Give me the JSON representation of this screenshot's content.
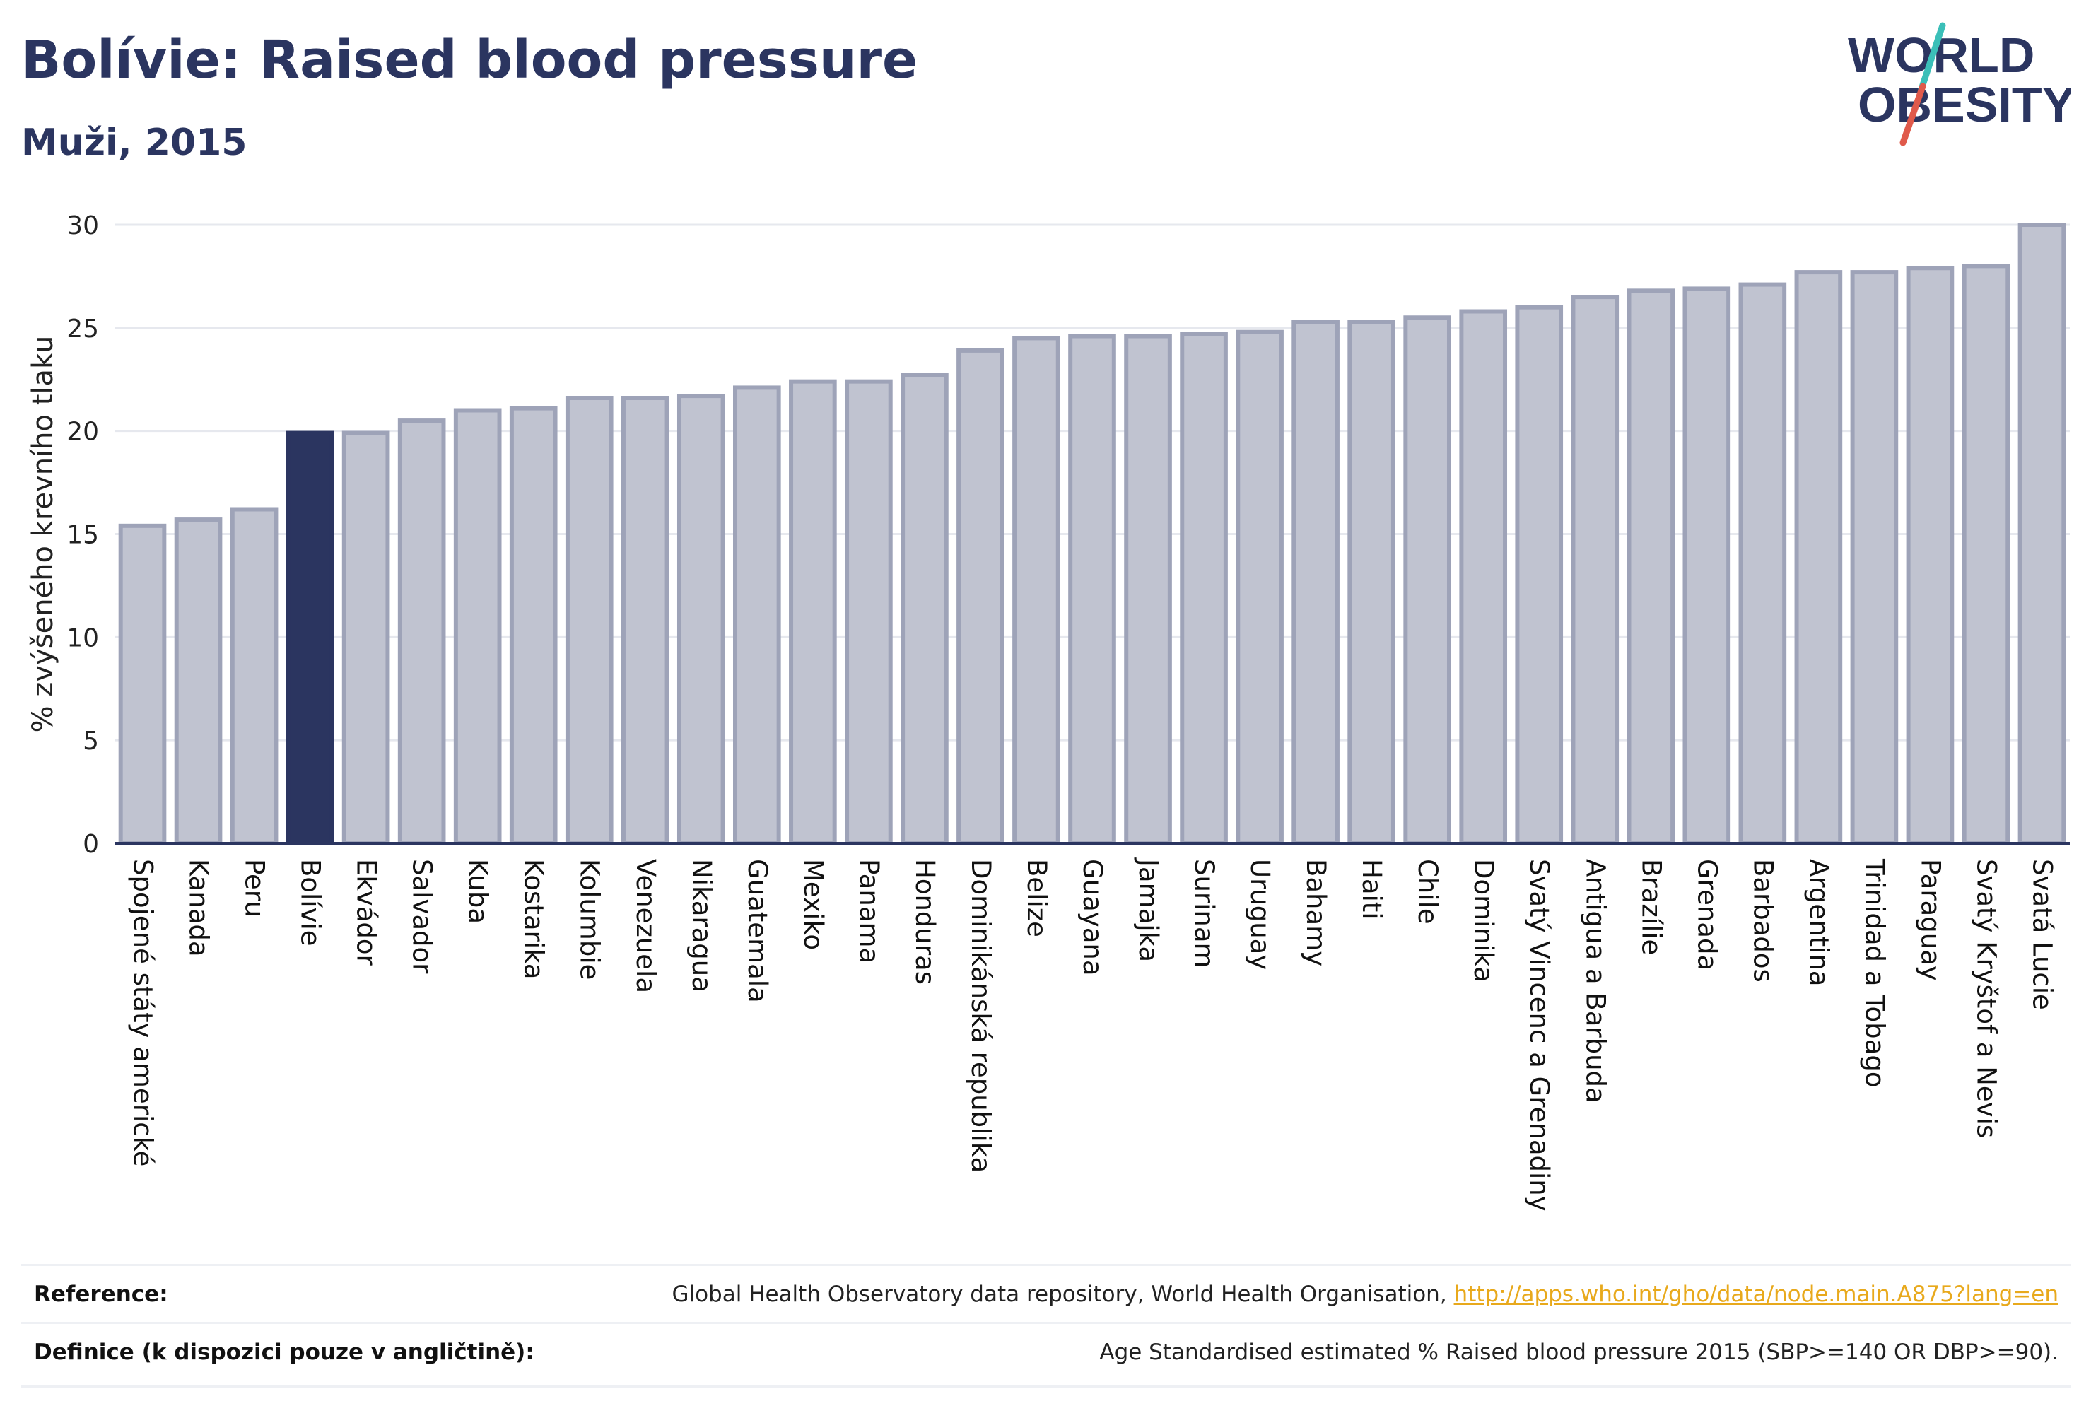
{
  "header": {
    "title": "Bolívie: Raised blood pressure",
    "subtitle": "Muži, 2015"
  },
  "logo": {
    "line1": "WORLD",
    "line2": "OBESITY",
    "colors": {
      "text": "#2b3560",
      "slash_teal": "#3bbfb8",
      "slash_red": "#e05a4b"
    }
  },
  "colors": {
    "bar_fill": "#c0c3d0",
    "bar_stroke": "#9ea3b8",
    "highlight_fill": "#2b3560",
    "grid": "#e6e8ee",
    "axis": "#2b3560"
  },
  "chart_data": {
    "type": "bar",
    "ylabel": "% zvýšeného krevního tlaku",
    "ylim": [
      0,
      30
    ],
    "yticks": [
      0,
      5,
      10,
      15,
      20,
      25,
      30
    ],
    "grid": true,
    "highlight": "Bolívie",
    "categories": [
      "Spojené státy americké",
      "Kanada",
      "Peru",
      "Bolívie",
      "Ekvádor",
      "Salvador",
      "Kuba",
      "Kostarika",
      "Kolumbie",
      "Venezuela",
      "Nikaragua",
      "Guatemala",
      "Mexiko",
      "Panama",
      "Honduras",
      "Dominikánská republika",
      "Belize",
      "Guayana",
      "Jamajka",
      "Surinam",
      "Uruguay",
      "Bahamy",
      "Haiti",
      "Chile",
      "Dominika",
      "Svatý Vincenc a Grenadiny",
      "Antigua a Barbuda",
      "Brazílie",
      "Grenada",
      "Barbados",
      "Argentina",
      "Trinidad a Tobago",
      "Paraguay",
      "Svatý Kryštof a Nevis",
      "Svatá Lucie"
    ],
    "values": [
      15.4,
      15.7,
      16.2,
      19.9,
      19.9,
      20.5,
      21.0,
      21.1,
      21.6,
      21.6,
      21.7,
      22.1,
      22.4,
      22.4,
      22.7,
      23.9,
      24.5,
      24.6,
      24.6,
      24.7,
      24.8,
      25.3,
      25.3,
      25.5,
      25.8,
      26.0,
      26.5,
      26.8,
      26.9,
      27.1,
      27.7,
      27.7,
      27.9,
      28.0,
      30.0
    ]
  },
  "footer": {
    "reference_label": "Reference:",
    "reference_text": "Global Health Observatory data repository, World Health Organisation,",
    "reference_link": "http://apps.who.int/gho/data/node.main.A875?lang=en",
    "definition_label": "Definice (k dispozici pouze v angličtině):",
    "definition_text": "Age Standardised estimated % Raised blood pressure 2015 (SBP>=140 OR DBP>=90)."
  }
}
